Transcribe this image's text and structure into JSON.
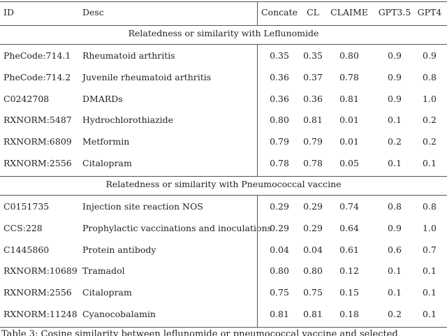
{
  "columns": [
    "ID",
    "Desc",
    "Concate",
    "CL",
    "CLAIME",
    "GPT3.5",
    "GPT4"
  ],
  "sections": [
    {
      "title": "Relatedness or similarity with Leflunomide",
      "rows": [
        [
          "PheCode:714.1",
          "Rheumatoid arthritis",
          "0.35",
          "0.35",
          "0.80",
          "0.9",
          "0.9"
        ],
        [
          "PheCode:714.2",
          "Juvenile rheumatoid arthritis",
          "0.36",
          "0.37",
          "0.78",
          "0.9",
          "0.8"
        ],
        [
          "C0242708",
          "DMARDs",
          "0.36",
          "0.36",
          "0.81",
          "0.9",
          "1.0"
        ],
        [
          "RXNORM:5487",
          "Hydrochlorothiazide",
          "0.80",
          "0.81",
          "0.01",
          "0.1",
          "0.2"
        ],
        [
          "RXNORM:6809",
          "Metformin",
          "0.79",
          "0.79",
          "0.01",
          "0.2",
          "0.2"
        ],
        [
          "RXNORM:2556",
          "Citalopram",
          "0.78",
          "0.78",
          "0.05",
          "0.1",
          "0.1"
        ]
      ]
    },
    {
      "title": "Relatedness or similarity with Pneumococcal vaccine",
      "rows": [
        [
          "C0151735",
          "Injection site reaction NOS",
          "0.29",
          "0.29",
          "0.74",
          "0.8",
          "0.8"
        ],
        [
          "CCS:228",
          "Prophylactic vaccinations and inoculations",
          "0.29",
          "0.29",
          "0.64",
          "0.9",
          "1.0"
        ],
        [
          "C1445860",
          "Protein antibody",
          "0.04",
          "0.04",
          "0.61",
          "0.6",
          "0.7"
        ],
        [
          "RXNORM:10689",
          "Tramadol",
          "0.80",
          "0.80",
          "0.12",
          "0.1",
          "0.1"
        ],
        [
          "RXNORM:2556",
          "Citalopram",
          "0.75",
          "0.75",
          "0.15",
          "0.1",
          "0.1"
        ],
        [
          "RXNORM:11248",
          "Cyanocobalamin",
          "0.81",
          "0.81",
          "0.18",
          "0.2",
          "0.1"
        ]
      ]
    }
  ],
  "caption": "Table 3: Cosine similarity between leflunomide or pneumococcal vaccine and selected"
}
